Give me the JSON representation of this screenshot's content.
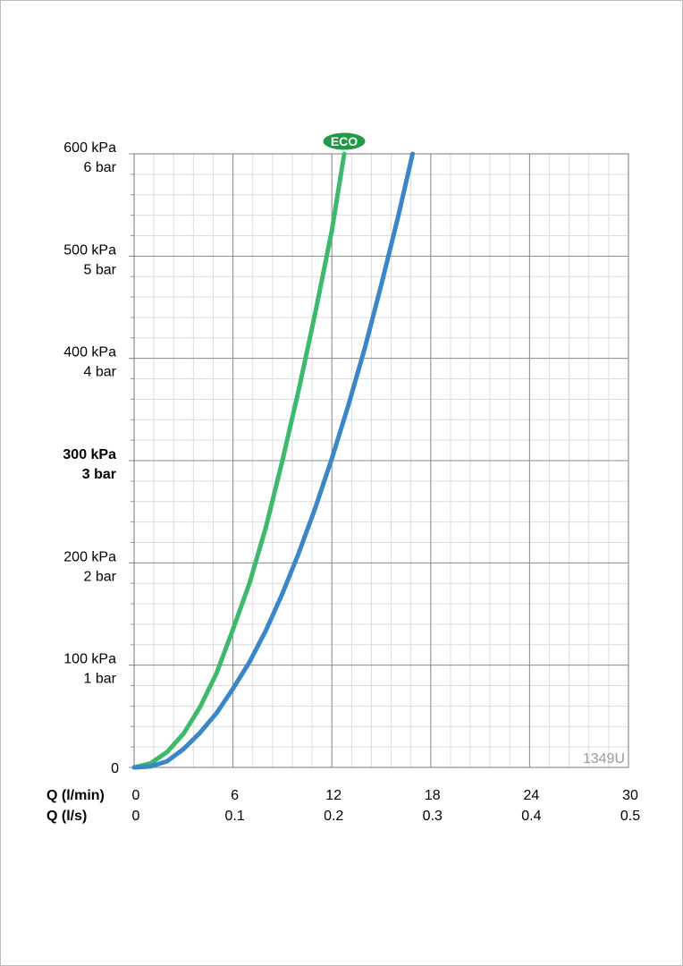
{
  "chart_data": {
    "type": "line",
    "x_label": "Q (l/min)",
    "x2_label": "Q (l/s)",
    "xlim": [
      0,
      30
    ],
    "xticks": [
      0,
      6,
      12,
      18,
      24,
      30
    ],
    "x2lim": [
      0,
      0.5
    ],
    "x2ticks": [
      0,
      0.1,
      0.2,
      0.3,
      0.4,
      0.5
    ],
    "ylim": [
      0,
      600
    ],
    "yticks": [
      0,
      {
        "value": 100,
        "label": "100 kPa",
        "sublabel": "1 bar"
      },
      {
        "value": 200,
        "label": "200 kPa",
        "sublabel": "2 bar"
      },
      {
        "value": 300,
        "label": "300 kPa",
        "sublabel": "3 bar",
        "bold": true
      },
      {
        "value": 400,
        "label": "400 kPa",
        "sublabel": "4 bar"
      },
      {
        "value": 500,
        "label": "500 kPa",
        "sublabel": "5 bar"
      },
      {
        "value": 600,
        "label": "600 kPa",
        "sublabel": "6 bar"
      }
    ],
    "grid": true,
    "minor_grid": {
      "x": 1.2,
      "y": 20
    },
    "watermark": "1349U",
    "series": [
      {
        "name": "ECO",
        "color": "#3cb96a",
        "x": [
          0,
          1,
          2,
          3,
          4,
          5,
          6,
          7,
          8,
          9,
          10,
          11,
          12,
          12.75
        ],
        "values": [
          0,
          4,
          15,
          33,
          59,
          92,
          135,
          180,
          235,
          300,
          370,
          445,
          525,
          600
        ]
      },
      {
        "color": "#3a86c8",
        "x": [
          0,
          1,
          2,
          3,
          4,
          5,
          6,
          7,
          8,
          9,
          10,
          11,
          12,
          13,
          14,
          15,
          16,
          16.9
        ],
        "values": [
          0,
          1,
          6,
          18,
          34,
          53,
          77,
          103,
          134,
          170,
          210,
          254,
          302,
          354,
          410,
          472,
          537,
          600
        ]
      }
    ]
  }
}
